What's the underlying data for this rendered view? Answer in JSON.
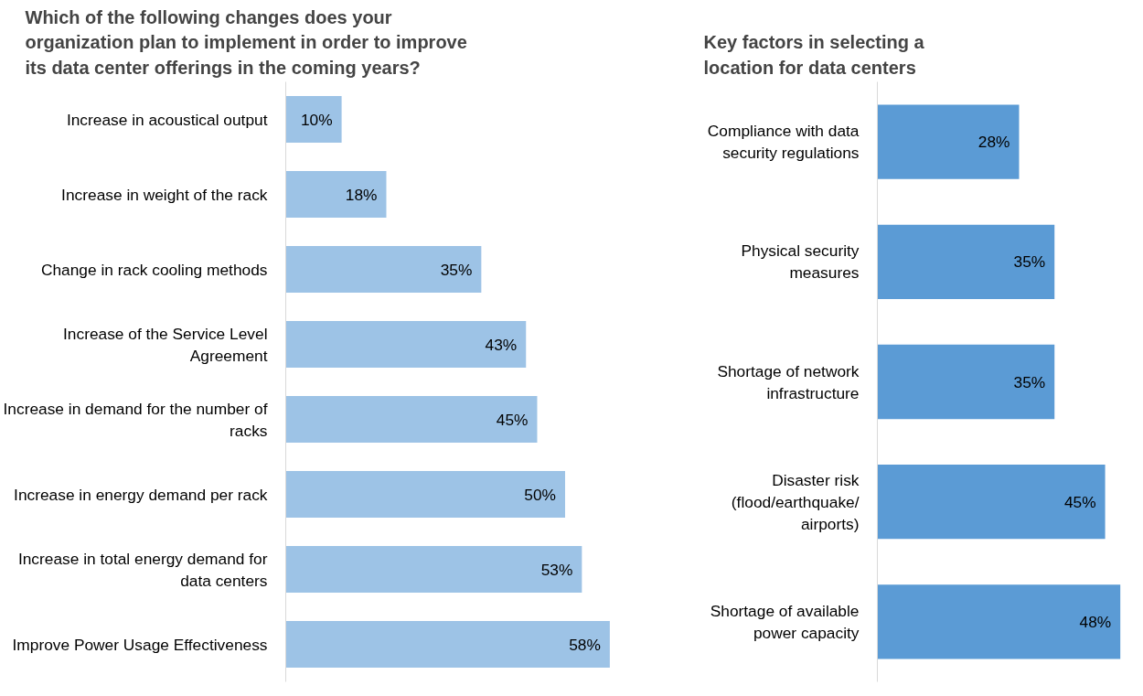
{
  "chart_data": [
    {
      "type": "bar",
      "orientation": "horizontal",
      "title": "Which of the following changes does your organization plan to implement in order to improve its data center offerings in the coming years?",
      "categories": [
        "Increase in acoustical output",
        "Increase in weight of the rack",
        "Change in rack cooling methods",
        "Increase of the Service Level Agreement",
        "Increase in demand for the number of racks",
        "Increase in energy demand per rack",
        "Increase in total energy demand for data centers",
        "Improve Power Usage Effectiveness"
      ],
      "values": [
        10,
        18,
        35,
        43,
        45,
        50,
        53,
        58
      ],
      "value_labels": [
        "10%",
        "18%",
        "35%",
        "43%",
        "45%",
        "50%",
        "53%",
        "58%"
      ],
      "color": "#9dc3e6",
      "grid": false
    },
    {
      "type": "bar",
      "orientation": "horizontal",
      "title": "Key factors in selecting a location for data centers",
      "categories": [
        "Compliance with data security regulations",
        "Physical security measures",
        "Shortage of network infrastructure",
        "Disaster risk (flood/earthquake/ airports)",
        "Shortage of available power capacity"
      ],
      "values": [
        28,
        35,
        35,
        45,
        48
      ],
      "value_labels": [
        "28%",
        "35%",
        "35%",
        "45%",
        "48%"
      ],
      "color": "#5b9bd5",
      "grid": false
    }
  ]
}
